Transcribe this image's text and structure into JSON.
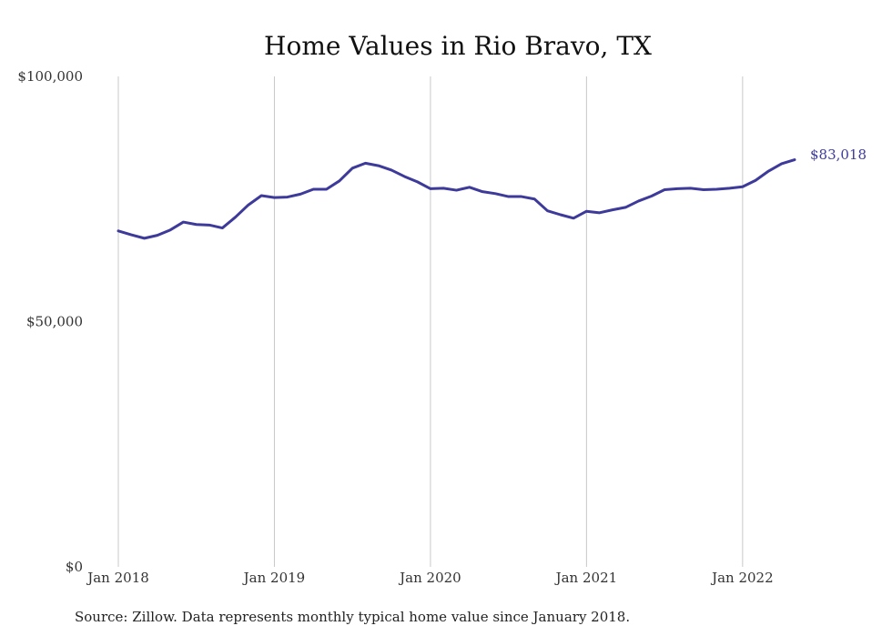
{
  "chart_data": {
    "type": "line",
    "title": "Home Values in Rio Bravo, TX",
    "xlabel": "",
    "ylabel": "",
    "x_start": "2018-01",
    "x_end": "2022-05",
    "x_ticks": [
      {
        "x": "2018-01",
        "label": "Jan 2018"
      },
      {
        "x": "2019-01",
        "label": "Jan 2019"
      },
      {
        "x": "2020-01",
        "label": "Jan 2020"
      },
      {
        "x": "2021-01",
        "label": "Jan 2021"
      },
      {
        "x": "2022-01",
        "label": "Jan 2022"
      }
    ],
    "y_ticks": [
      {
        "value": 0,
        "label": "$0"
      },
      {
        "value": 50000,
        "label": "$50,000"
      },
      {
        "value": 100000,
        "label": "$100,000"
      }
    ],
    "ylim": [
      0,
      100000
    ],
    "grid": "vertical",
    "legend": "none",
    "color": "#3d3a9a",
    "series": [
      {
        "name": "",
        "x": [
          "2018-01",
          "2018-02",
          "2018-03",
          "2018-04",
          "2018-05",
          "2018-06",
          "2018-07",
          "2018-08",
          "2018-09",
          "2018-10",
          "2018-11",
          "2018-12",
          "2019-01",
          "2019-02",
          "2019-03",
          "2019-04",
          "2019-05",
          "2019-06",
          "2019-07",
          "2019-08",
          "2019-09",
          "2019-10",
          "2019-11",
          "2019-12",
          "2020-01",
          "2020-02",
          "2020-03",
          "2020-04",
          "2020-05",
          "2020-06",
          "2020-07",
          "2020-08",
          "2020-09",
          "2020-10",
          "2020-11",
          "2020-12",
          "2021-01",
          "2021-02",
          "2021-03",
          "2021-04",
          "2021-05",
          "2021-06",
          "2021-07",
          "2021-08",
          "2021-09",
          "2021-10",
          "2021-11",
          "2021-12",
          "2022-01",
          "2022-02",
          "2022-03",
          "2022-04",
          "2022-05"
        ],
        "values": [
          68500,
          67700,
          67000,
          67600,
          68700,
          70300,
          69800,
          69700,
          69100,
          71300,
          73800,
          75700,
          75300,
          75400,
          76000,
          77000,
          77000,
          78700,
          81300,
          82300,
          81800,
          80900,
          79600,
          78500,
          77100,
          77200,
          76800,
          77400,
          76500,
          76100,
          75500,
          75500,
          75000,
          72600,
          71800,
          71100,
          72500,
          72200,
          72800,
          73300,
          74600,
          75600,
          76900,
          77100,
          77200,
          76900,
          77000,
          77200,
          77500,
          78800,
          80700,
          82200,
          83018
        ]
      }
    ],
    "end_label": "$83,018"
  },
  "source_note": "Source: Zillow. Data represents monthly typical home value since January 2018."
}
